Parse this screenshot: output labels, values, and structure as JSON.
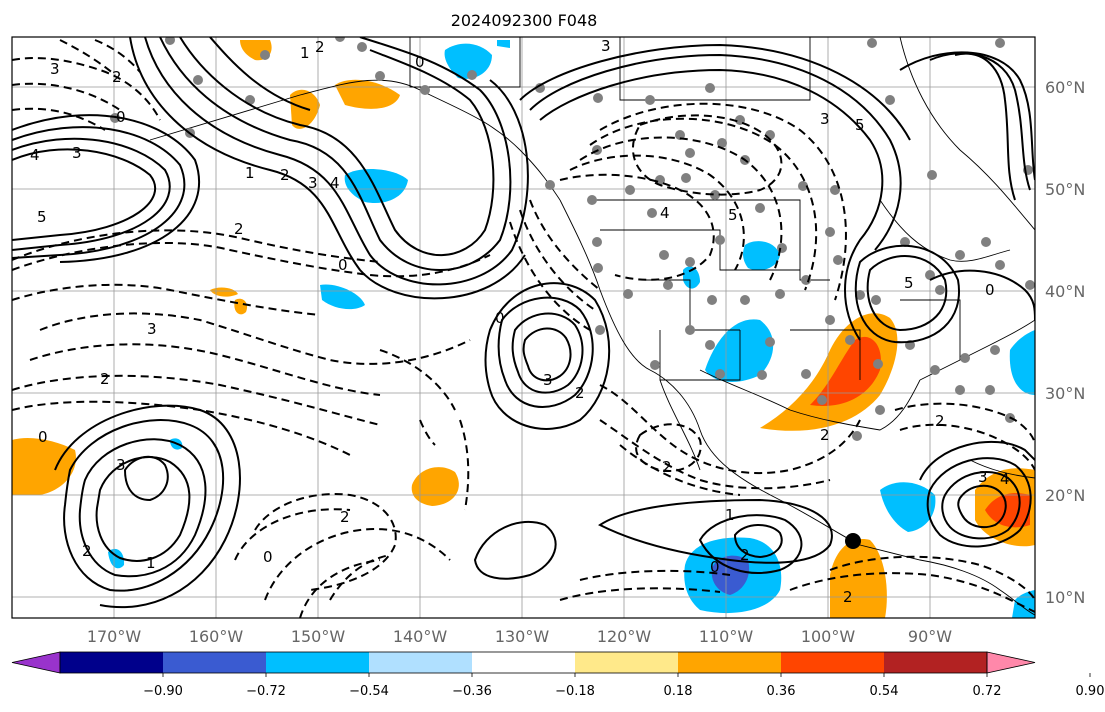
{
  "title": "2024092300 F048",
  "lat_labels": [
    "60°N",
    "50°N",
    "40°N",
    "30°N",
    "20°N",
    "10°N"
  ],
  "lon_labels": [
    "170°W",
    "160°W",
    "150°W",
    "140°W",
    "130°W",
    "120°W",
    "110°W",
    "100°W",
    "90°W"
  ],
  "colorbar": {
    "ticks": [
      "−0.90",
      "−0.72",
      "−0.54",
      "−0.36",
      "−0.18",
      "0.18",
      "0.36",
      "0.54",
      "0.72",
      "0.90"
    ],
    "colors": [
      "#9933cc",
      "#00008b",
      "#3a5bd1",
      "#00bfff",
      "#b0e0ff",
      "#ffffff",
      "#ffe98a",
      "#ffa500",
      "#ff4500",
      "#b22222",
      "#ff88aa"
    ]
  },
  "contour_labels": [
    {
      "text": "3"
    },
    {
      "text": "2"
    },
    {
      "text": "4"
    },
    {
      "text": "5"
    },
    {
      "text": "1"
    },
    {
      "text": "0"
    },
    {
      "text": "2"
    },
    {
      "text": "3"
    },
    {
      "text": "4"
    },
    {
      "text": "2"
    },
    {
      "text": "1"
    },
    {
      "text": "2"
    },
    {
      "text": "3"
    },
    {
      "text": "0"
    },
    {
      "text": "3"
    },
    {
      "text": "2"
    },
    {
      "text": "0"
    },
    {
      "text": "0"
    },
    {
      "text": "3"
    },
    {
      "text": "5"
    },
    {
      "text": "3"
    },
    {
      "text": "4"
    },
    {
      "text": "5"
    },
    {
      "text": "3"
    },
    {
      "text": "2"
    },
    {
      "text": "2"
    },
    {
      "text": "2"
    },
    {
      "text": "0"
    },
    {
      "text": "2"
    },
    {
      "text": "1"
    },
    {
      "text": "2"
    },
    {
      "text": "0"
    },
    {
      "text": "3"
    },
    {
      "text": "4"
    },
    {
      "text": "2"
    },
    {
      "text": "1"
    },
    {
      "text": "0"
    },
    {
      "text": "5"
    },
    {
      "text": "3"
    },
    {
      "text": "2"
    },
    {
      "text": "0"
    },
    {
      "text": "2"
    }
  ]
}
